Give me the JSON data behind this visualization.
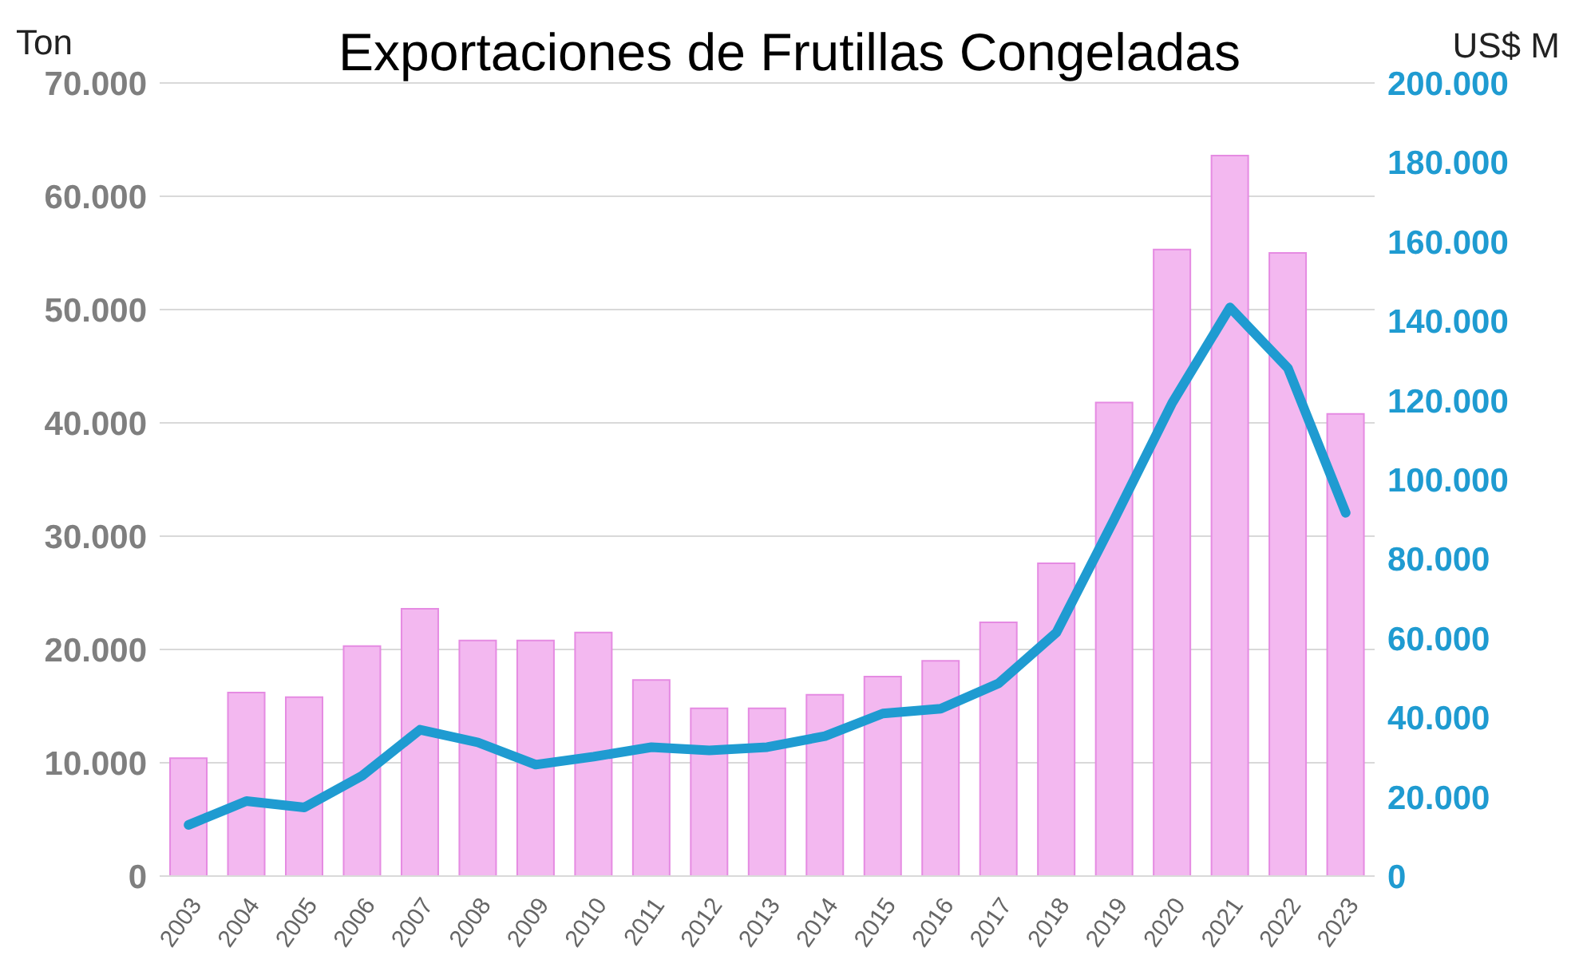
{
  "chart_data": {
    "type": "bar",
    "title": "Exportaciones de Frutillas Congeladas",
    "ylabel": "Ton",
    "y2label": "US$ M",
    "categories": [
      "2003",
      "2004",
      "2005",
      "2006",
      "2007",
      "2008",
      "2009",
      "2010",
      "2011",
      "2012",
      "2013",
      "2014",
      "2015",
      "2016",
      "2017",
      "2018",
      "2019",
      "2020",
      "2021",
      "2022",
      "2023"
    ],
    "series": [
      {
        "color": "#f3b8f0",
        "values": [
          10400,
          16200,
          15800,
          20300,
          23600,
          20800,
          20800,
          21500,
          17300,
          14800,
          14800,
          16000,
          17600,
          19000,
          22400,
          27600,
          41800,
          55300,
          63600,
          55000,
          40800
        ]
      },
      {
        "type": "line",
        "axis": "y2",
        "color": "#1f9bd1",
        "values": [
          12900,
          18900,
          17300,
          25300,
          36900,
          33700,
          28100,
          30100,
          32500,
          31700,
          32500,
          35300,
          41000,
          42200,
          48600,
          61400,
          90000,
          119300,
          143400,
          128100,
          91600
        ]
      }
    ],
    "ylim": [
      0,
      70000
    ],
    "yticks": [
      {
        "value": 0,
        "label": "0"
      },
      {
        "value": 10000,
        "label": "10.000"
      },
      {
        "value": 20000,
        "label": "20.000"
      },
      {
        "value": 30000,
        "label": "30.000"
      },
      {
        "value": 40000,
        "label": "40.000"
      },
      {
        "value": 50000,
        "label": "50.000"
      },
      {
        "value": 60000,
        "label": "60.000"
      },
      {
        "value": 70000,
        "label": "70.000"
      }
    ],
    "y2lim": [
      0,
      200000
    ],
    "y2ticks": [
      {
        "value": 0,
        "label": "0"
      },
      {
        "value": 20000,
        "label": "20.000"
      },
      {
        "value": 40000,
        "label": "40.000"
      },
      {
        "value": 60000,
        "label": "60.000"
      },
      {
        "value": 80000,
        "label": "80.000"
      },
      {
        "value": 100000,
        "label": "100.000"
      },
      {
        "value": 120000,
        "label": "120.000"
      },
      {
        "value": 140000,
        "label": "140.000"
      },
      {
        "value": 160000,
        "label": "160.000"
      },
      {
        "value": 180000,
        "label": "180.000"
      },
      {
        "value": 200000,
        "label": "200.000"
      }
    ],
    "grid": "y",
    "legend": false,
    "marker": "none",
    "line_style": "solid"
  }
}
